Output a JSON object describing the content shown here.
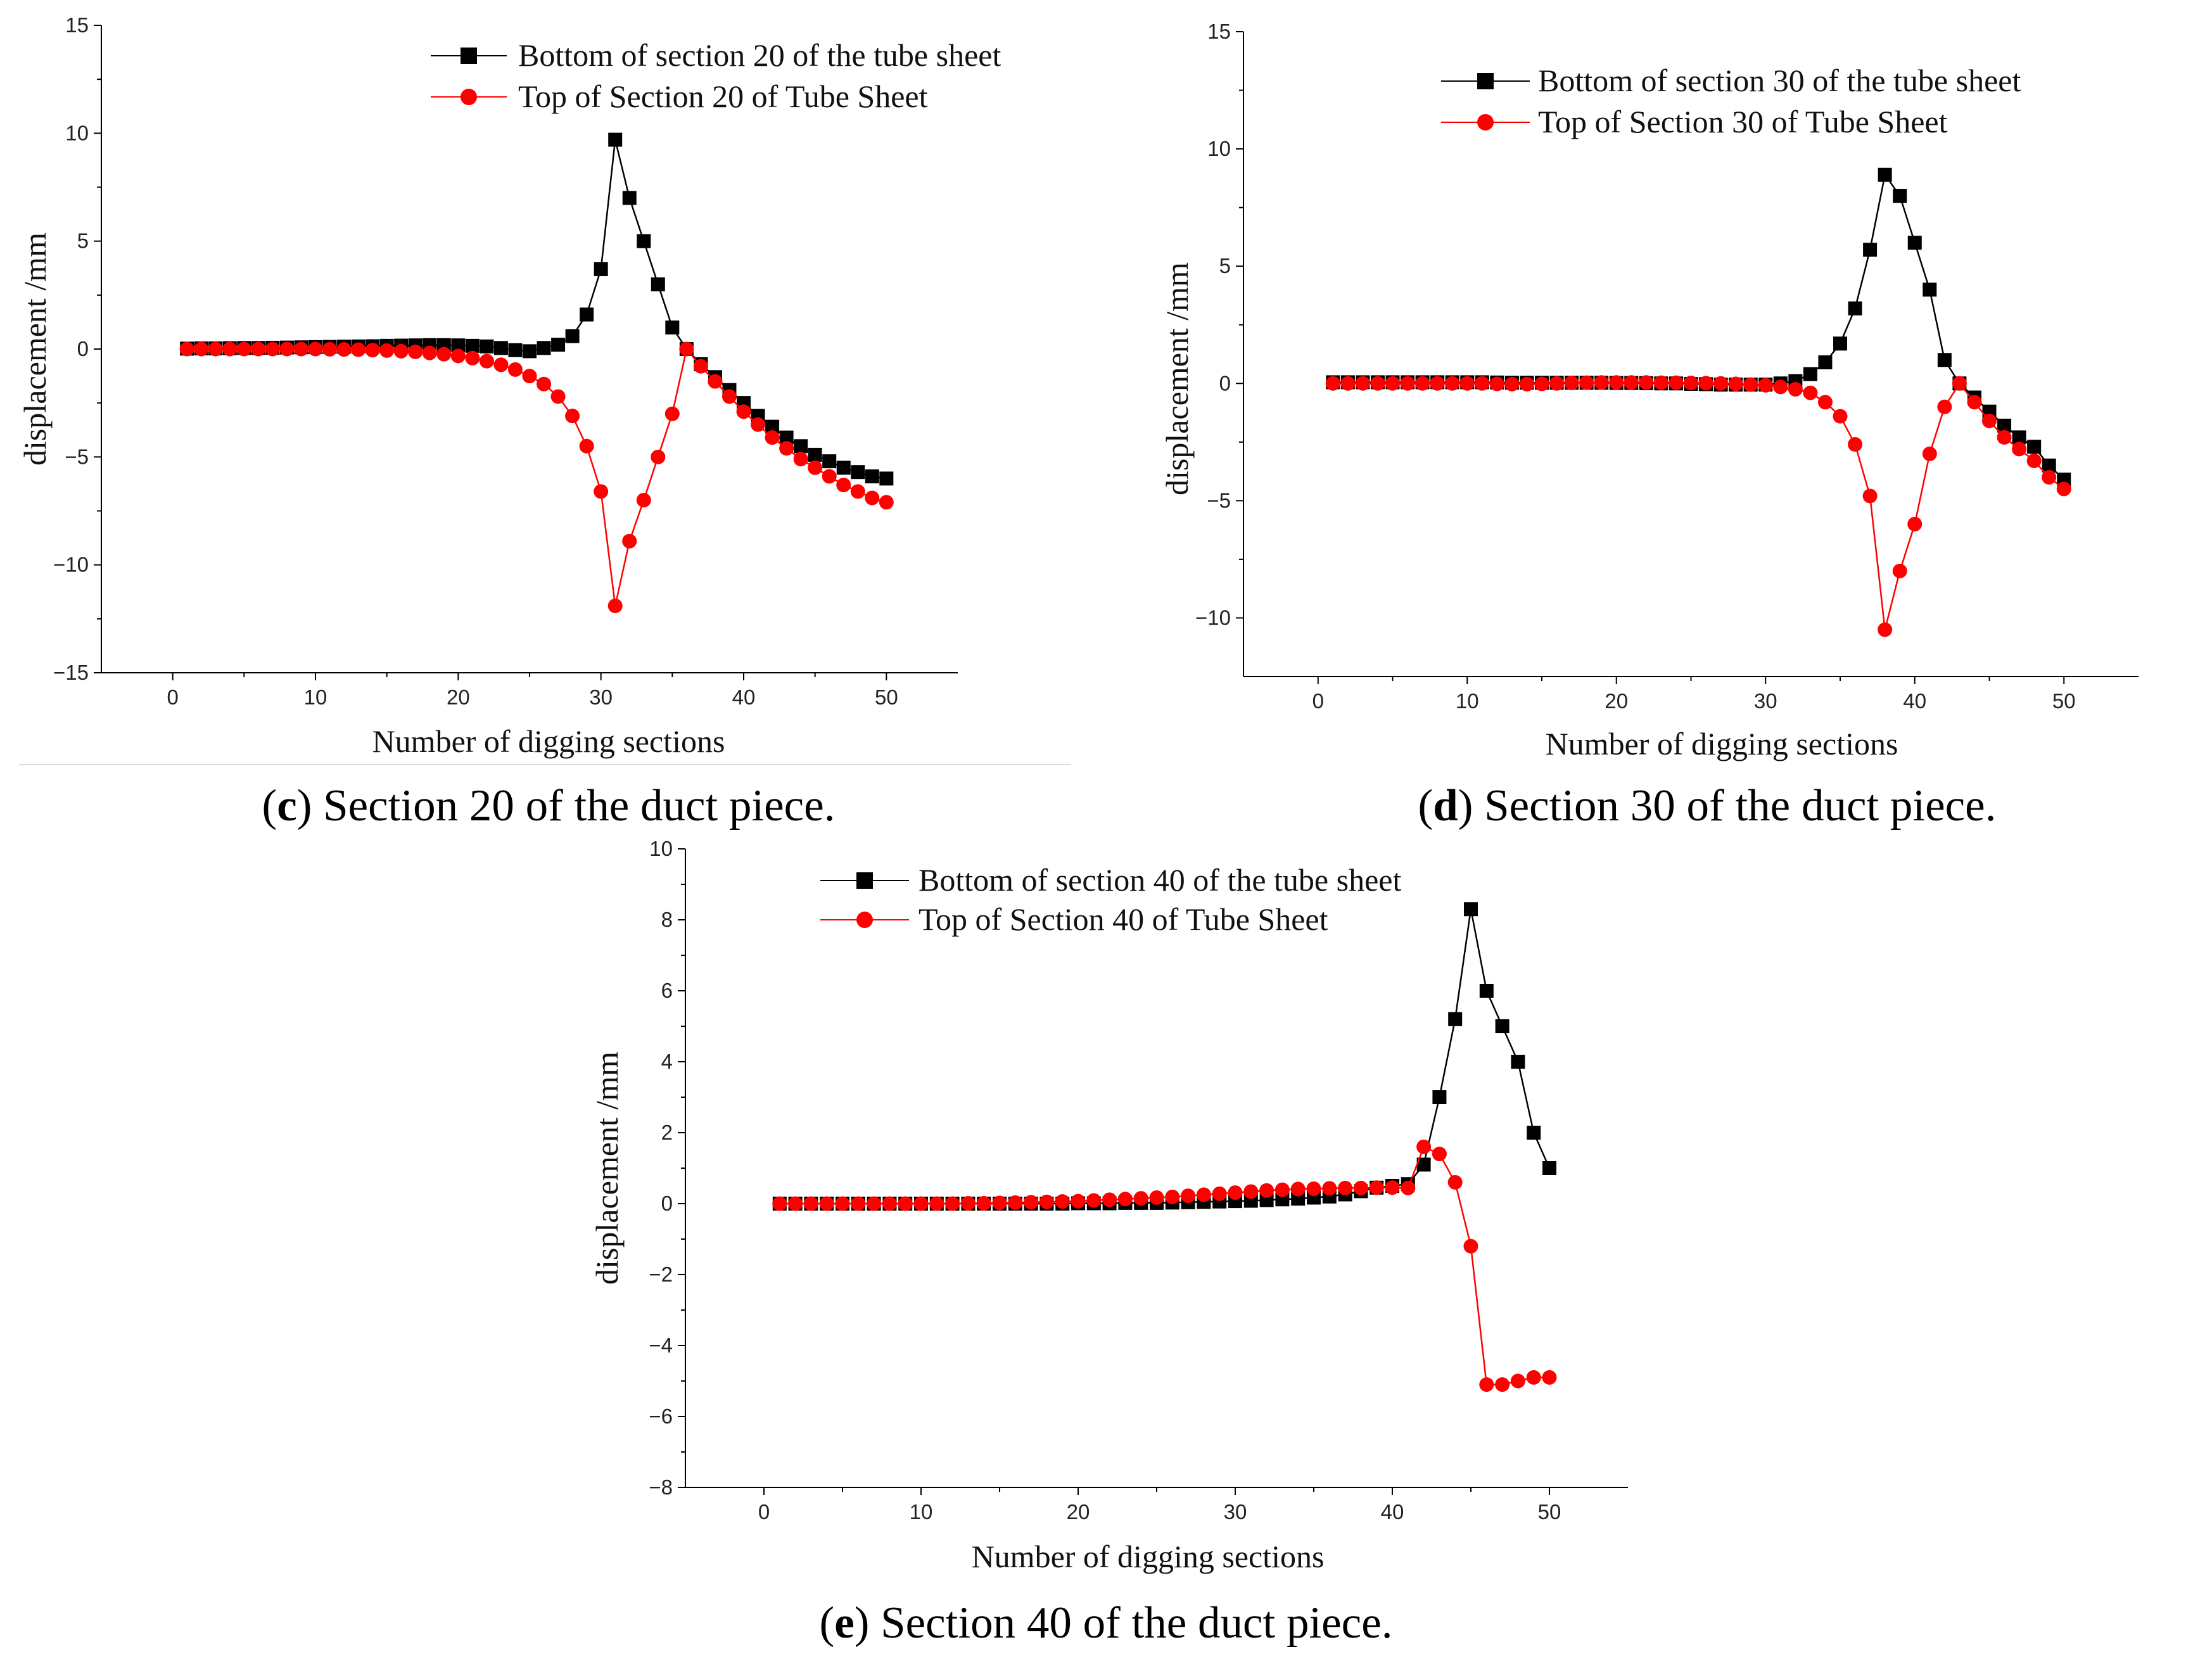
{
  "colors": {
    "bottom": "#000000",
    "top": "#ff0000",
    "axis": "#000000"
  },
  "chart_data": [
    {
      "type": "line",
      "x_ticks": [
        "0",
        "10",
        "20",
        "30",
        "40",
        "50"
      ],
      "y_ticks": [
        "−15",
        "−10",
        "−5",
        "0",
        "5",
        "10",
        "15"
      ],
      "xlabel": "Number of digging sections",
      "ylabel": "displacement /mm",
      "xlim": [
        -5,
        55
      ],
      "ylim": [
        -15,
        15
      ],
      "x_tick_step": 10,
      "y_tick_step": 5,
      "legend_position": "top-right",
      "caption": {
        "letter": "c",
        "text": "Section 20 of the duct piece."
      },
      "series": [
        {
          "name": "Bottom of section 20 of the tube sheet",
          "color": "#000000",
          "marker": "square",
          "x": [
            1,
            2,
            3,
            4,
            5,
            6,
            7,
            8,
            9,
            10,
            11,
            12,
            13,
            14,
            15,
            16,
            17,
            18,
            19,
            20,
            21,
            22,
            23,
            24,
            25,
            26,
            27,
            28,
            29,
            30,
            31,
            32,
            33,
            34,
            35,
            36,
            37,
            38,
            39,
            40,
            41,
            42,
            43,
            44,
            45,
            46,
            47,
            48,
            49,
            50
          ],
          "y": [
            0.02,
            0.03,
            0.03,
            0.04,
            0.05,
            0.05,
            0.06,
            0.07,
            0.08,
            0.09,
            0.1,
            0.11,
            0.12,
            0.13,
            0.15,
            0.16,
            0.17,
            0.18,
            0.18,
            0.17,
            0.15,
            0.12,
            0.05,
            -0.05,
            -0.1,
            0.05,
            0.2,
            0.6,
            1.6,
            3.7,
            9.7,
            7.0,
            5.0,
            3.0,
            1.0,
            0.0,
            -0.7,
            -1.3,
            -1.9,
            -2.5,
            -3.1,
            -3.6,
            -4.1,
            -4.5,
            -4.9,
            -5.2,
            -5.5,
            -5.7,
            -5.9,
            -6.0
          ]
        },
        {
          "name": "Top of Section 20 of Tube Sheet",
          "color": "#ff0000",
          "marker": "circle",
          "x": [
            1,
            2,
            3,
            4,
            5,
            6,
            7,
            8,
            9,
            10,
            11,
            12,
            13,
            14,
            15,
            16,
            17,
            18,
            19,
            20,
            21,
            22,
            23,
            24,
            25,
            26,
            27,
            28,
            29,
            30,
            31,
            32,
            33,
            34,
            35,
            36,
            37,
            38,
            39,
            40,
            41,
            42,
            43,
            44,
            45,
            46,
            47,
            48,
            49,
            50
          ],
          "y": [
            0.0,
            0.0,
            0.0,
            0.0,
            0.0,
            0.0,
            0.0,
            0.0,
            0.0,
            0.0,
            -0.01,
            -0.02,
            -0.03,
            -0.05,
            -0.07,
            -0.1,
            -0.13,
            -0.18,
            -0.24,
            -0.32,
            -0.42,
            -0.56,
            -0.73,
            -0.95,
            -1.25,
            -1.62,
            -2.2,
            -3.1,
            -4.5,
            -6.6,
            -11.9,
            -8.9,
            -7.0,
            -5.0,
            -3.0,
            0.0,
            -0.8,
            -1.5,
            -2.2,
            -2.9,
            -3.5,
            -4.1,
            -4.6,
            -5.1,
            -5.5,
            -5.9,
            -6.3,
            -6.6,
            -6.9,
            -7.1
          ]
        }
      ]
    },
    {
      "type": "line",
      "x_ticks": [
        "0",
        "10",
        "20",
        "30",
        "40",
        "50"
      ],
      "y_ticks": [
        "−10",
        "−5",
        "0",
        "5",
        "10",
        "15"
      ],
      "xlabel": "Number of digging sections",
      "ylabel": "displacement /mm",
      "xlim": [
        -5,
        55
      ],
      "ylim": [
        -12.5,
        15
      ],
      "x_tick_step": 10,
      "y_tick_step": 5,
      "legend_position": "top-right",
      "caption": {
        "letter": "d",
        "text": "Section 30 of the duct piece."
      },
      "series": [
        {
          "name": "Bottom of section 30 of the tube sheet",
          "color": "#000000",
          "marker": "square",
          "x": [
            1,
            2,
            3,
            4,
            5,
            6,
            7,
            8,
            9,
            10,
            11,
            12,
            13,
            14,
            15,
            16,
            17,
            18,
            19,
            20,
            21,
            22,
            23,
            24,
            25,
            26,
            27,
            28,
            29,
            30,
            31,
            32,
            33,
            34,
            35,
            36,
            37,
            38,
            39,
            40,
            41,
            42,
            43,
            44,
            45,
            46,
            47,
            48,
            49,
            50
          ],
          "y": [
            0.05,
            0.05,
            0.05,
            0.05,
            0.05,
            0.05,
            0.05,
            0.05,
            0.05,
            0.05,
            0.05,
            0.04,
            0.03,
            0.03,
            0.03,
            0.03,
            0.03,
            0.03,
            0.03,
            0.02,
            0.02,
            0.01,
            0.0,
            0.0,
            -0.02,
            -0.03,
            -0.05,
            -0.05,
            -0.05,
            -0.05,
            0.0,
            0.1,
            0.4,
            0.9,
            1.7,
            3.2,
            5.7,
            8.9,
            8.0,
            6.0,
            4.0,
            1.0,
            0.0,
            -0.6,
            -1.2,
            -1.8,
            -2.3,
            -2.7,
            -3.5,
            -4.1
          ]
        },
        {
          "name": "Top of Section 30 of Tube Sheet",
          "color": "#ff0000",
          "marker": "circle",
          "x": [
            1,
            2,
            3,
            4,
            5,
            6,
            7,
            8,
            9,
            10,
            11,
            12,
            13,
            14,
            15,
            16,
            17,
            18,
            19,
            20,
            21,
            22,
            23,
            24,
            25,
            26,
            27,
            28,
            29,
            30,
            31,
            32,
            33,
            34,
            35,
            36,
            37,
            38,
            39,
            40,
            41,
            42,
            43,
            44,
            45,
            46,
            47,
            48,
            49,
            50
          ],
          "y": [
            0.0,
            0.0,
            0.0,
            0.0,
            0.0,
            0.0,
            0.0,
            0.0,
            0.0,
            0.0,
            0.0,
            -0.02,
            -0.03,
            -0.03,
            -0.02,
            0.0,
            0.02,
            0.03,
            0.04,
            0.04,
            0.04,
            0.04,
            0.03,
            0.03,
            0.02,
            0.01,
            0.0,
            -0.02,
            -0.05,
            -0.08,
            -0.15,
            -0.25,
            -0.4,
            -0.8,
            -1.4,
            -2.6,
            -4.8,
            -10.5,
            -8.0,
            -6.0,
            -3.0,
            -1.0,
            0.0,
            -0.8,
            -1.6,
            -2.3,
            -2.8,
            -3.3,
            -4.0,
            -4.5
          ]
        }
      ]
    },
    {
      "type": "line",
      "x_ticks": [
        "0",
        "10",
        "20",
        "30",
        "40",
        "50"
      ],
      "y_ticks": [
        "−8",
        "−6",
        "−4",
        "−2",
        "0",
        "2",
        "4",
        "6",
        "8",
        "10"
      ],
      "xlabel": "Number of digging sections",
      "ylabel": "displacement /mm",
      "xlim": [
        -5,
        55
      ],
      "ylim": [
        -8,
        10
      ],
      "x_tick_step": 10,
      "y_tick_step": 2,
      "legend_position": "top-right",
      "caption": {
        "letter": "e",
        "text": "Section 40 of the duct piece."
      },
      "series": [
        {
          "name": "Bottom of section 40 of the tube sheet",
          "color": "#000000",
          "marker": "square",
          "x": [
            1,
            2,
            3,
            4,
            5,
            6,
            7,
            8,
            9,
            10,
            11,
            12,
            13,
            14,
            15,
            16,
            17,
            18,
            19,
            20,
            21,
            22,
            23,
            24,
            25,
            26,
            27,
            28,
            29,
            30,
            31,
            32,
            33,
            34,
            35,
            36,
            37,
            38,
            39,
            40,
            41,
            42,
            43,
            44,
            45,
            46,
            47,
            48,
            49,
            50
          ],
          "y": [
            0.0,
            0.0,
            0.0,
            0.0,
            0.0,
            0.0,
            0.0,
            0.0,
            0.0,
            0.0,
            0.0,
            0.0,
            0.0,
            0.0,
            0.0,
            0.0,
            0.0,
            0.0,
            0.0,
            0.01,
            0.01,
            0.01,
            0.02,
            0.02,
            0.02,
            0.03,
            0.04,
            0.05,
            0.06,
            0.07,
            0.08,
            0.1,
            0.12,
            0.14,
            0.17,
            0.2,
            0.26,
            0.35,
            0.45,
            0.5,
            0.55,
            1.1,
            3.0,
            5.2,
            8.3,
            6.0,
            5.0,
            4.0,
            2.0,
            1.0
          ]
        },
        {
          "name": "Top of Section 40 of Tube Sheet",
          "color": "#ff0000",
          "marker": "circle",
          "x": [
            1,
            2,
            3,
            4,
            5,
            6,
            7,
            8,
            9,
            10,
            11,
            12,
            13,
            14,
            15,
            16,
            17,
            18,
            19,
            20,
            21,
            22,
            23,
            24,
            25,
            26,
            27,
            28,
            29,
            30,
            31,
            32,
            33,
            34,
            35,
            36,
            37,
            38,
            39,
            40,
            41,
            42,
            43,
            44,
            45,
            46,
            47,
            48,
            49,
            50
          ],
          "y": [
            0.0,
            0.0,
            0.0,
            0.0,
            0.0,
            0.0,
            0.0,
            0.0,
            0.0,
            0.0,
            0.0,
            0.0,
            0.01,
            0.01,
            0.02,
            0.03,
            0.04,
            0.05,
            0.06,
            0.07,
            0.09,
            0.11,
            0.13,
            0.15,
            0.17,
            0.19,
            0.22,
            0.25,
            0.28,
            0.31,
            0.34,
            0.37,
            0.39,
            0.41,
            0.42,
            0.43,
            0.44,
            0.44,
            0.45,
            0.45,
            0.44,
            1.6,
            1.4,
            0.6,
            -1.2,
            -5.1,
            -5.1,
            -5.0,
            -4.9,
            -4.9
          ]
        }
      ]
    }
  ]
}
